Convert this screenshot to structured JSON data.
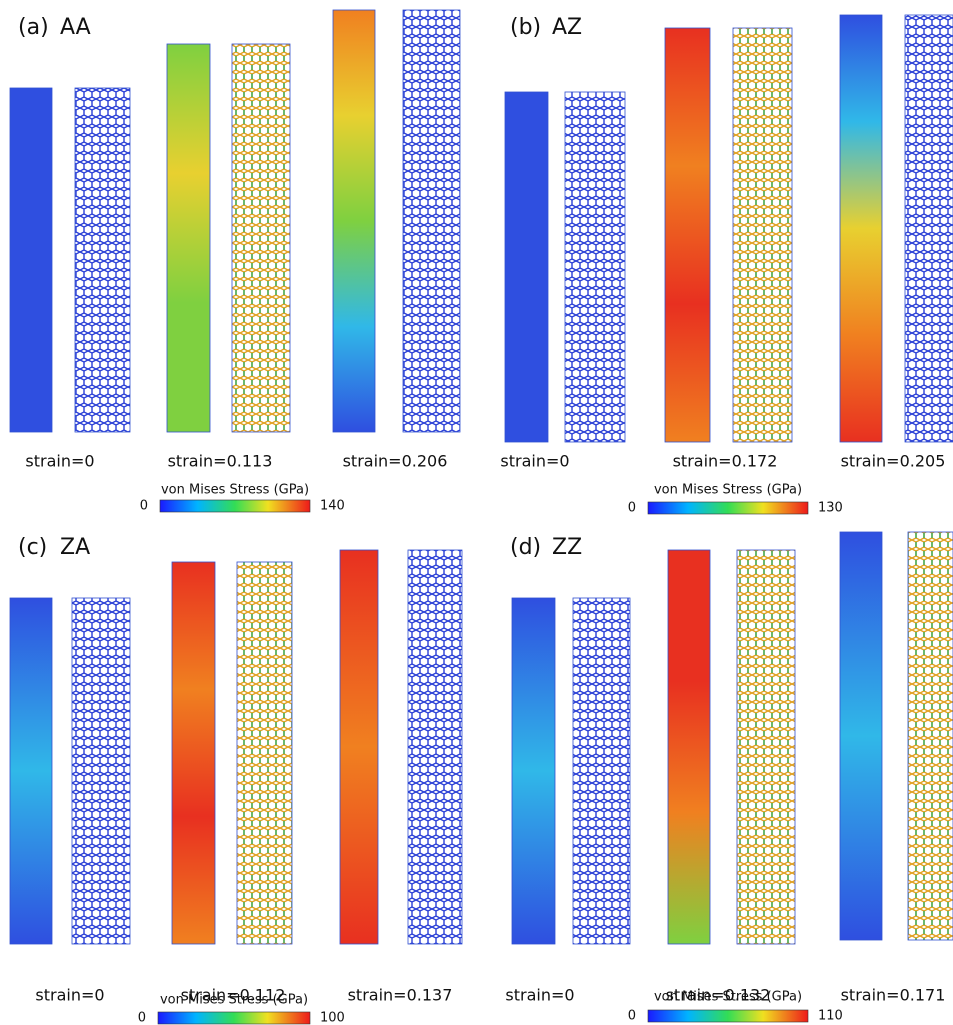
{
  "panels": [
    {
      "label": "(a)",
      "name": "AA",
      "strains": [
        "strain=0",
        "strain=0.113",
        "strain=0.206"
      ],
      "colorbar": {
        "title": "von Mises Stress (GPa)",
        "min": 0,
        "max": 140
      }
    },
    {
      "label": "(b)",
      "name": "AZ",
      "strains": [
        "strain=0",
        "strain=0.172",
        "strain=0.205"
      ],
      "colorbar": {
        "title": "von Mises Stress (GPa)",
        "min": 0,
        "max": 130
      }
    },
    {
      "label": "(c)",
      "name": "ZA",
      "strains": [
        "strain=0",
        "strain=0.112",
        "strain=0.137"
      ],
      "colorbar": {
        "title": "von Mises Stress (GPa)",
        "min": 0,
        "max": 100
      }
    },
    {
      "label": "(d)",
      "name": "ZZ",
      "strains": [
        "strain=0",
        "strain=0.132",
        "strain=0.171"
      ],
      "colorbar": {
        "title": "von Mises Stress (GPa)",
        "min": 0,
        "max": 110
      }
    }
  ]
}
